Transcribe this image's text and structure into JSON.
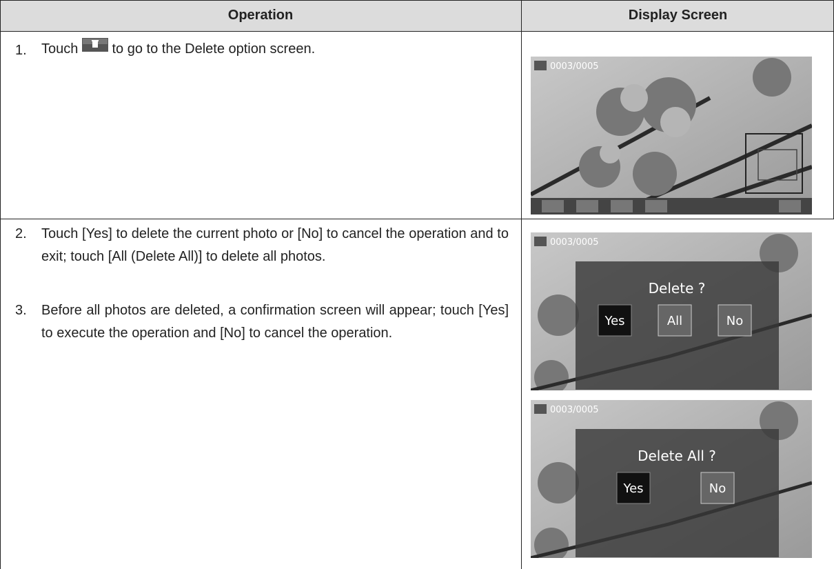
{
  "table": {
    "headers": [
      "Operation",
      "Display Screen"
    ],
    "rows": [
      {
        "steps": [
          {
            "number": "1.",
            "text_before": "Touch",
            "text_after": "to go to the Delete option screen."
          }
        ],
        "screens": [
          {
            "counter": "0003/0005"
          }
        ]
      },
      {
        "steps": [
          {
            "number": "2.",
            "text": "Touch [Yes] to delete the current photo or [No] to cancel the operation and to exit; touch [All (Delete All)] to delete all photos."
          },
          {
            "number": "3.",
            "text": "Before all photos are deleted, a confirmation screen will appear; touch [Yes] to execute the operation and [No] to cancel the operation."
          }
        ],
        "screens": [
          {
            "counter": "0003/0005",
            "prompt": "Delete ?",
            "buttons": [
              "Yes",
              "All",
              "No"
            ]
          },
          {
            "counter": "0003/0005",
            "prompt": "Delete All ?",
            "buttons": [
              "Yes",
              "No"
            ]
          }
        ]
      }
    ]
  }
}
